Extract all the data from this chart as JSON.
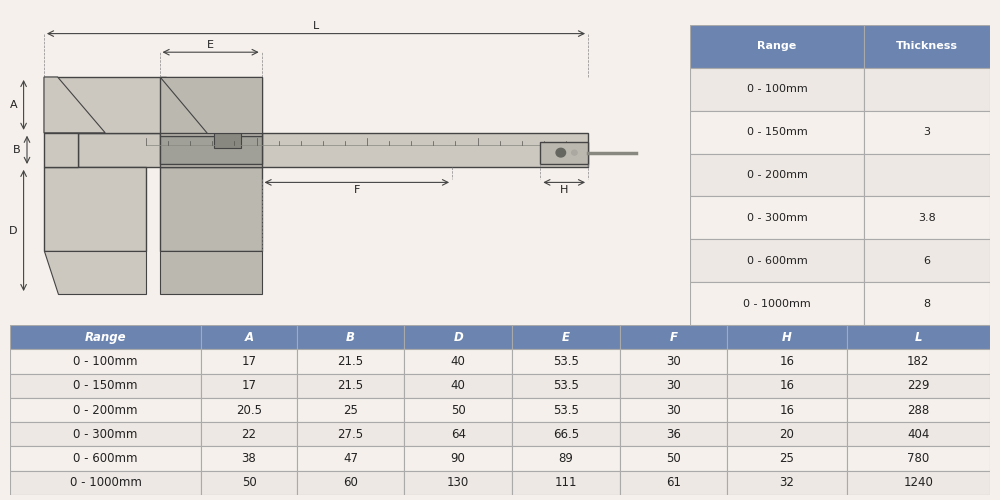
{
  "bg_color": "#f5f0eb",
  "header_color": "#6b84b0",
  "header_text_color": "#ffffff",
  "table1_header": [
    "Range",
    "Thickness"
  ],
  "table1_rows": [
    [
      "0 - 100mm",
      ""
    ],
    [
      "0 - 150mm",
      "3"
    ],
    [
      "0 - 200mm",
      ""
    ],
    [
      "0 - 300mm",
      "3.8"
    ],
    [
      "0 - 600mm",
      "6"
    ],
    [
      "0 - 1000mm",
      "8"
    ]
  ],
  "table2_header": [
    "Range",
    "A",
    "B",
    "D",
    "E",
    "F",
    "H",
    "L"
  ],
  "table2_rows": [
    [
      "0 - 100mm",
      "17",
      "21.5",
      "40",
      "53.5",
      "30",
      "16",
      "182"
    ],
    [
      "0 - 150mm",
      "17",
      "21.5",
      "40",
      "53.5",
      "30",
      "16",
      "229"
    ],
    [
      "0 - 200mm",
      "20.5",
      "25",
      "50",
      "53.5",
      "30",
      "16",
      "288"
    ],
    [
      "0 - 300mm",
      "22",
      "27.5",
      "64",
      "66.5",
      "36",
      "20",
      "404"
    ],
    [
      "0 - 600mm",
      "38",
      "47",
      "90",
      "89",
      "50",
      "25",
      "780"
    ],
    [
      "0 - 1000mm",
      "50",
      "60",
      "130",
      "111",
      "61",
      "32",
      "1240"
    ]
  ],
  "row_alt_color": "#ede8e3",
  "row_plain_color": "#f5f0eb",
  "border_color": "#aaaaaa",
  "text_color": "#222222"
}
